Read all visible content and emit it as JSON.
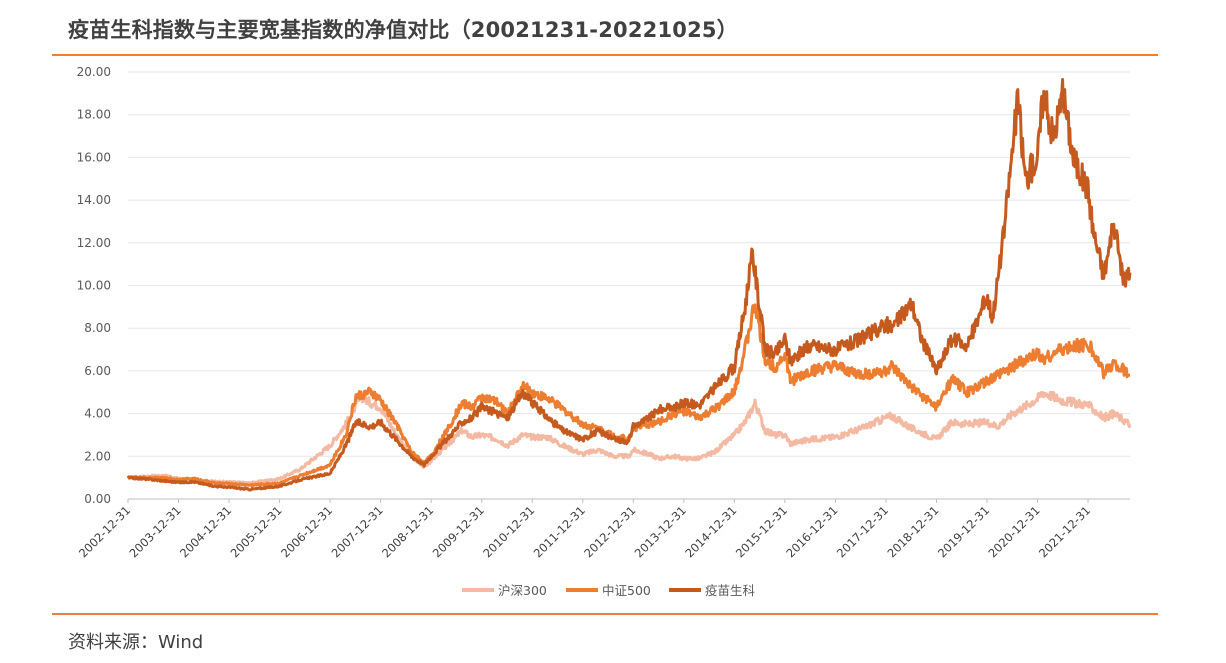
{
  "title": "疫苗生科指数与主要宽基指数的净值对比（20021231-20221025）",
  "source": "资料来源：Wind",
  "chart_data": {
    "type": "line",
    "ylim": [
      0,
      20
    ],
    "yticks": [
      "0.00",
      "2.00",
      "4.00",
      "6.00",
      "8.00",
      "10.00",
      "12.00",
      "14.00",
      "16.00",
      "18.00",
      "20.00"
    ],
    "xticks": [
      "2002-12-31",
      "2003-12-31",
      "2004-12-31",
      "2005-12-31",
      "2006-12-31",
      "2007-12-31",
      "2008-12-31",
      "2009-12-31",
      "2010-12-31",
      "2011-12-31",
      "2012-12-31",
      "2013-12-31",
      "2014-12-31",
      "2015-12-31",
      "2016-12-31",
      "2017-12-31",
      "2018-12-31",
      "2019-12-31",
      "2020-12-31",
      "2021-12-31"
    ],
    "xrange": [
      2002.99,
      2022.82
    ],
    "grid": true,
    "legend_position": "bottom",
    "series": [
      {
        "name": "沪深300",
        "color": "#f4b9a2",
        "points": [
          [
            2002.99,
            1.0
          ],
          [
            2003.3,
            1.05
          ],
          [
            2003.7,
            1.1
          ],
          [
            2003.99,
            0.95
          ],
          [
            2004.3,
            0.9
          ],
          [
            2004.7,
            0.82
          ],
          [
            2004.99,
            0.8
          ],
          [
            2005.4,
            0.75
          ],
          [
            2005.99,
            0.95
          ],
          [
            2006.4,
            1.4
          ],
          [
            2006.99,
            2.5
          ],
          [
            2007.3,
            3.5
          ],
          [
            2007.6,
            4.8
          ],
          [
            2007.8,
            4.5
          ],
          [
            2007.99,
            4.3
          ],
          [
            2008.3,
            3.0
          ],
          [
            2008.6,
            2.0
          ],
          [
            2008.85,
            1.5
          ],
          [
            2008.99,
            1.8
          ],
          [
            2009.3,
            2.5
          ],
          [
            2009.6,
            3.2
          ],
          [
            2009.8,
            2.9
          ],
          [
            2009.99,
            3.0
          ],
          [
            2010.3,
            2.8
          ],
          [
            2010.5,
            2.5
          ],
          [
            2010.8,
            3.0
          ],
          [
            2010.99,
            2.9
          ],
          [
            2011.3,
            2.9
          ],
          [
            2011.6,
            2.5
          ],
          [
            2011.99,
            2.1
          ],
          [
            2012.3,
            2.3
          ],
          [
            2012.6,
            2.0
          ],
          [
            2012.9,
            2.0
          ],
          [
            2012.99,
            2.3
          ],
          [
            2013.3,
            2.1
          ],
          [
            2013.5,
            1.9
          ],
          [
            2013.8,
            2.0
          ],
          [
            2013.99,
            1.9
          ],
          [
            2014.3,
            1.9
          ],
          [
            2014.6,
            2.2
          ],
          [
            2014.99,
            3.0
          ],
          [
            2015.2,
            3.6
          ],
          [
            2015.4,
            4.5
          ],
          [
            2015.6,
            3.2
          ],
          [
            2015.8,
            3.0
          ],
          [
            2015.99,
            3.0
          ],
          [
            2016.1,
            2.6
          ],
          [
            2016.5,
            2.8
          ],
          [
            2016.99,
            2.9
          ],
          [
            2017.5,
            3.3
          ],
          [
            2017.99,
            3.8
          ],
          [
            2018.1,
            3.9
          ],
          [
            2018.5,
            3.3
          ],
          [
            2018.99,
            2.8
          ],
          [
            2019.3,
            3.6
          ],
          [
            2019.6,
            3.5
          ],
          [
            2019.99,
            3.6
          ],
          [
            2020.2,
            3.4
          ],
          [
            2020.5,
            4.0
          ],
          [
            2020.99,
            4.7
          ],
          [
            2021.1,
            5.0
          ],
          [
            2021.5,
            4.6
          ],
          [
            2021.99,
            4.4
          ],
          [
            2022.3,
            3.8
          ],
          [
            2022.5,
            4.0
          ],
          [
            2022.82,
            3.5
          ]
        ]
      },
      {
        "name": "中证500",
        "color": "#ed7d31",
        "points": [
          [
            2002.99,
            1.0
          ],
          [
            2003.3,
            1.0
          ],
          [
            2003.7,
            0.98
          ],
          [
            2003.99,
            0.92
          ],
          [
            2004.3,
            0.95
          ],
          [
            2004.7,
            0.75
          ],
          [
            2004.99,
            0.72
          ],
          [
            2005.4,
            0.65
          ],
          [
            2005.99,
            0.75
          ],
          [
            2006.4,
            1.1
          ],
          [
            2006.99,
            1.6
          ],
          [
            2007.3,
            3.0
          ],
          [
            2007.5,
            4.8
          ],
          [
            2007.8,
            5.0
          ],
          [
            2007.99,
            4.6
          ],
          [
            2008.3,
            3.5
          ],
          [
            2008.6,
            2.2
          ],
          [
            2008.85,
            1.7
          ],
          [
            2008.99,
            2.0
          ],
          [
            2009.3,
            3.2
          ],
          [
            2009.6,
            4.5
          ],
          [
            2009.8,
            4.3
          ],
          [
            2009.99,
            4.8
          ],
          [
            2010.3,
            4.5
          ],
          [
            2010.5,
            4.0
          ],
          [
            2010.8,
            5.3
          ],
          [
            2010.99,
            5.0
          ],
          [
            2011.3,
            4.7
          ],
          [
            2011.6,
            4.2
          ],
          [
            2011.99,
            3.5
          ],
          [
            2012.3,
            3.3
          ],
          [
            2012.6,
            3.0
          ],
          [
            2012.9,
            2.8
          ],
          [
            2012.99,
            3.3
          ],
          [
            2013.3,
            3.5
          ],
          [
            2013.5,
            3.6
          ],
          [
            2013.8,
            4.0
          ],
          [
            2013.99,
            4.1
          ],
          [
            2014.3,
            3.8
          ],
          [
            2014.6,
            4.2
          ],
          [
            2014.99,
            5.0
          ],
          [
            2015.2,
            7.0
          ],
          [
            2015.4,
            9.2
          ],
          [
            2015.6,
            6.5
          ],
          [
            2015.8,
            6.2
          ],
          [
            2015.99,
            6.8
          ],
          [
            2016.1,
            5.5
          ],
          [
            2016.5,
            6.0
          ],
          [
            2016.99,
            6.2
          ],
          [
            2017.5,
            5.8
          ],
          [
            2017.99,
            6.0
          ],
          [
            2018.1,
            6.2
          ],
          [
            2018.5,
            5.2
          ],
          [
            2018.99,
            4.3
          ],
          [
            2019.3,
            5.6
          ],
          [
            2019.6,
            5.0
          ],
          [
            2019.99,
            5.5
          ],
          [
            2020.2,
            5.8
          ],
          [
            2020.5,
            6.2
          ],
          [
            2020.99,
            6.8
          ],
          [
            2021.1,
            6.6
          ],
          [
            2021.5,
            7.0
          ],
          [
            2021.99,
            7.3
          ],
          [
            2022.3,
            5.9
          ],
          [
            2022.5,
            6.4
          ],
          [
            2022.82,
            5.8
          ]
        ]
      },
      {
        "name": "疫苗生科",
        "color": "#c45a1e",
        "points": [
          [
            2002.99,
            1.0
          ],
          [
            2003.3,
            0.95
          ],
          [
            2003.7,
            0.85
          ],
          [
            2003.99,
            0.78
          ],
          [
            2004.3,
            0.8
          ],
          [
            2004.7,
            0.6
          ],
          [
            2004.99,
            0.55
          ],
          [
            2005.4,
            0.45
          ],
          [
            2005.99,
            0.6
          ],
          [
            2006.4,
            0.9
          ],
          [
            2006.99,
            1.2
          ],
          [
            2007.3,
            2.5
          ],
          [
            2007.5,
            3.6
          ],
          [
            2007.8,
            3.4
          ],
          [
            2007.99,
            3.6
          ],
          [
            2008.3,
            2.8
          ],
          [
            2008.6,
            2.0
          ],
          [
            2008.85,
            1.6
          ],
          [
            2008.99,
            2.0
          ],
          [
            2009.3,
            2.8
          ],
          [
            2009.6,
            3.6
          ],
          [
            2009.8,
            3.8
          ],
          [
            2009.99,
            4.3
          ],
          [
            2010.3,
            4.0
          ],
          [
            2010.5,
            3.8
          ],
          [
            2010.8,
            5.0
          ],
          [
            2010.99,
            4.5
          ],
          [
            2011.3,
            3.8
          ],
          [
            2011.6,
            3.2
          ],
          [
            2011.99,
            2.8
          ],
          [
            2012.3,
            3.2
          ],
          [
            2012.6,
            2.8
          ],
          [
            2012.9,
            2.7
          ],
          [
            2012.99,
            3.4
          ],
          [
            2013.3,
            3.8
          ],
          [
            2013.5,
            4.2
          ],
          [
            2013.8,
            4.3
          ],
          [
            2013.99,
            4.5
          ],
          [
            2014.3,
            4.4
          ],
          [
            2014.6,
            5.2
          ],
          [
            2014.99,
            6.2
          ],
          [
            2015.2,
            9.0
          ],
          [
            2015.35,
            11.5
          ],
          [
            2015.6,
            7.0
          ],
          [
            2015.8,
            6.8
          ],
          [
            2015.99,
            7.5
          ],
          [
            2016.1,
            6.5
          ],
          [
            2016.5,
            7.2
          ],
          [
            2016.99,
            7.0
          ],
          [
            2017.5,
            7.5
          ],
          [
            2017.99,
            8.2
          ],
          [
            2018.1,
            8.0
          ],
          [
            2018.5,
            9.2
          ],
          [
            2018.7,
            7.5
          ],
          [
            2018.99,
            6.0
          ],
          [
            2019.3,
            7.5
          ],
          [
            2019.6,
            7.2
          ],
          [
            2019.99,
            9.5
          ],
          [
            2020.1,
            8.5
          ],
          [
            2020.3,
            12.0
          ],
          [
            2020.6,
            18.8
          ],
          [
            2020.75,
            15.0
          ],
          [
            2020.99,
            16.0
          ],
          [
            2021.1,
            19.0
          ],
          [
            2021.3,
            17.0
          ],
          [
            2021.5,
            19.0
          ],
          [
            2021.7,
            16.0
          ],
          [
            2021.99,
            14.5
          ],
          [
            2022.1,
            12.5
          ],
          [
            2022.3,
            10.5
          ],
          [
            2022.5,
            12.8
          ],
          [
            2022.7,
            10.2
          ],
          [
            2022.82,
            10.6
          ]
        ]
      }
    ]
  }
}
